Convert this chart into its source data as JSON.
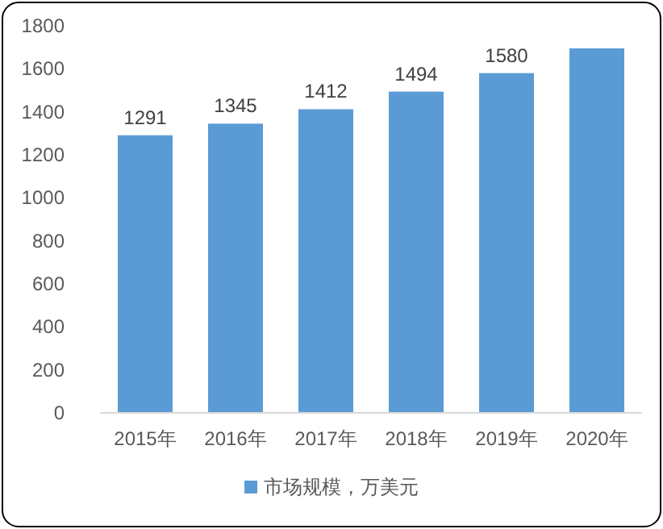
{
  "chart_data": {
    "type": "bar",
    "categories": [
      "2015年",
      "2016年",
      "2017年",
      "2018年",
      "2019年",
      "2020年"
    ],
    "series": [
      {
        "name": "市场规模，万美元",
        "color": "#5b9bd5",
        "values": [
          1291,
          1345,
          1412,
          1494,
          1580,
          1695
        ],
        "value_labels": [
          "1291",
          "1345",
          "1412",
          "1494",
          "1580",
          null
        ]
      }
    ],
    "ylim": [
      0,
      1800
    ],
    "yticks": [
      0,
      200,
      400,
      600,
      800,
      1000,
      1200,
      1400,
      1600,
      1800
    ],
    "legend": "bottom"
  }
}
